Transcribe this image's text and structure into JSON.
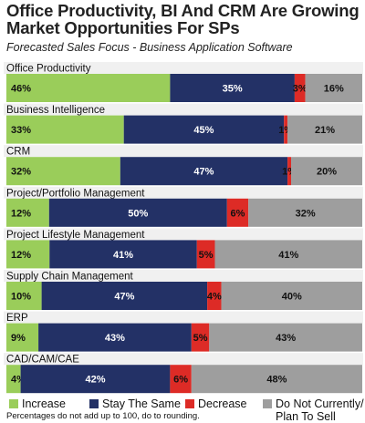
{
  "header": {
    "title": "Office Productivity, BI And CRM Are Growing Market Opportunities For SPs",
    "subtitle": "Forecasted Sales Focus - Business Application Software"
  },
  "footnote": "Percentages do not add up to 100, do to rounding.",
  "colors": {
    "increase": "#9acd5a",
    "stay": "#233166",
    "decrease": "#dd2b26",
    "not_sell": "#9e9e9e",
    "band": "#f0f0f0"
  },
  "legend": {
    "increase": "Increase",
    "stay": "Stay The Same",
    "decrease": "Decrease",
    "not_sell_line1": "Do Not Currently/",
    "not_sell_line2": "Plan To Sell"
  },
  "chart_data": {
    "type": "bar",
    "stacked": true,
    "orientation": "horizontal",
    "categories": [
      "Office Productivity",
      "Business Intelligence",
      "CRM",
      "Project/Portfolio Management",
      "Project Lifestyle Management",
      "Supply Chain Management",
      "ERP",
      "CAD/CAM/CAE"
    ],
    "series": [
      {
        "name": "Increase",
        "values": [
          46,
          33,
          32,
          12,
          12,
          10,
          9,
          4
        ]
      },
      {
        "name": "Stay The Same",
        "values": [
          35,
          45,
          47,
          50,
          41,
          47,
          43,
          42
        ]
      },
      {
        "name": "Decrease",
        "values": [
          3,
          1,
          1,
          6,
          5,
          4,
          5,
          6
        ]
      },
      {
        "name": "Do Not Currently/ Plan To Sell",
        "values": [
          16,
          21,
          20,
          32,
          41,
          40,
          43,
          48
        ]
      }
    ],
    "value_labels": [
      [
        "46%",
        "35%",
        "3%",
        "16%"
      ],
      [
        "33%",
        "45%",
        "1%",
        "21%"
      ],
      [
        "32%",
        "47%",
        "1%",
        "20%"
      ],
      [
        "12%",
        "50%",
        "6%",
        "32%"
      ],
      [
        "12%",
        "41%",
        "5%",
        "41%"
      ],
      [
        "10%",
        "47%",
        "4%",
        "40%"
      ],
      [
        "9%",
        "43%",
        "5%",
        "43%"
      ],
      [
        "4%",
        "42%",
        "6%",
        "48%"
      ]
    ],
    "legend_position": "bottom"
  }
}
